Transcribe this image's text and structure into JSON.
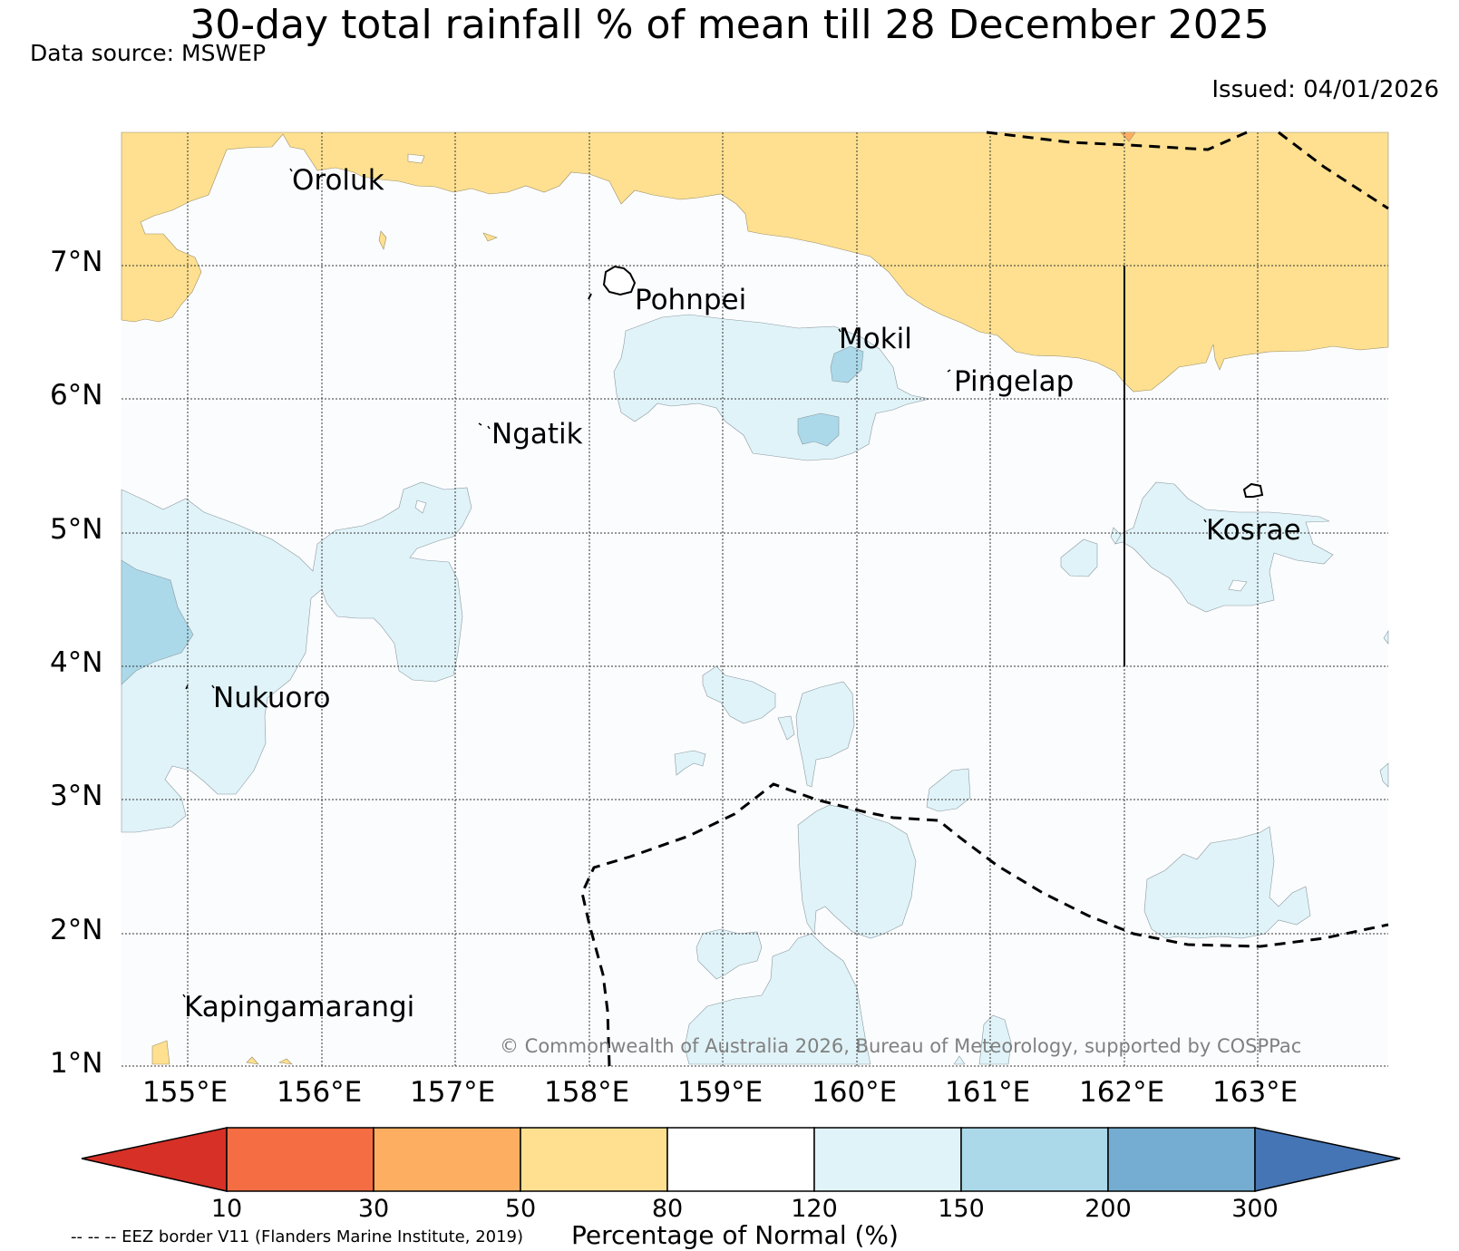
{
  "title": "30-day total rainfall % of mean till 28 December 2025",
  "data_source": "Data source: MSWEP",
  "issued": "Issued: 04/01/2026",
  "lat_labels": [
    "7°N",
    "6°N",
    "5°N",
    "4°N",
    "3°N",
    "2°N",
    "1°N"
  ],
  "lon_labels": [
    "155°E",
    "156°E",
    "157°E",
    "158°E",
    "159°E",
    "160°E",
    "161°E",
    "162°E",
    "163°E"
  ],
  "places": {
    "oroluk": "Oroluk",
    "pohnpei": "Pohnpei",
    "mokil": "Mokil",
    "pingelap": "Pingelap",
    "ngatik": "Ngatik",
    "kosrae": "Kosrae",
    "nukuoro": "Nukuoro",
    "kapingamarangi": "Kapingamarangi"
  },
  "copyright": "© Commonwealth of Australia 2026, Bureau of Meteorology, supported by COSPPac",
  "colorbar": {
    "ticks": [
      "10",
      "30",
      "50",
      "80",
      "120",
      "150",
      "200",
      "300"
    ],
    "label": "Percentage of Normal (%)",
    "colors": {
      "lt10": "#d73027",
      "b10_30": "#f46d43",
      "b30_50": "#fdae61",
      "b50_80": "#fee090",
      "b80_120": "#ffffff",
      "b120_150": "#e0f3f8",
      "b150_200": "#abd9e9",
      "b200_300": "#74add1",
      "gt300": "#4575b4"
    }
  },
  "eez_note": "-- -- -- EEZ border V11 (Flanders Marine Institute, 2019)"
}
